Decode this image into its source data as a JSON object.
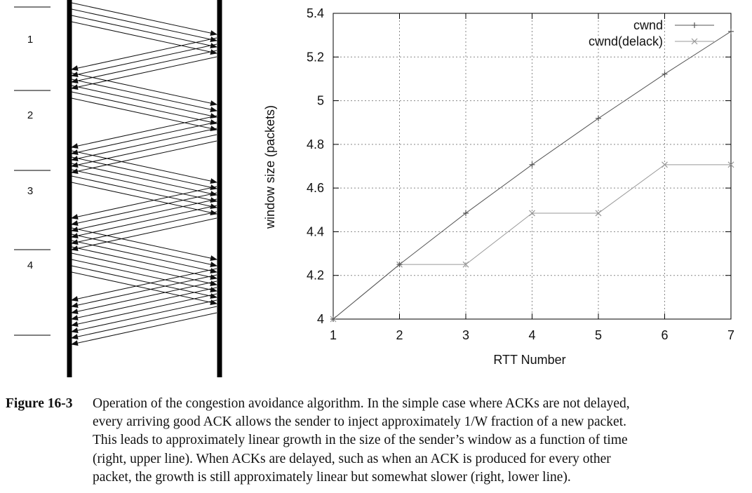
{
  "diagram": {
    "rtt_labels": [
      "1",
      "2",
      "3",
      "4"
    ]
  },
  "chart_data": {
    "type": "line",
    "xlabel": "RTT Number",
    "ylabel": "window size (packets)",
    "xlim": [
      1,
      7
    ],
    "ylim": [
      4,
      5.4
    ],
    "xticks": [
      "1",
      "2",
      "3",
      "4",
      "5",
      "6",
      "7"
    ],
    "yticks": [
      "4",
      "4.2",
      "4.4",
      "4.6",
      "4.8",
      "5",
      "5.2",
      "5.4"
    ],
    "grid": true,
    "legend_position": "top-right",
    "series": [
      {
        "name": "cwnd",
        "marker": "+",
        "color": "#555555",
        "x": [
          1,
          2,
          3,
          4,
          5,
          6,
          7
        ],
        "y": [
          4.0,
          4.25,
          4.485,
          4.707,
          4.919,
          5.122,
          5.317
        ]
      },
      {
        "name": "cwnd(delack)",
        "marker": "x",
        "color": "#999999",
        "x": [
          1,
          2,
          3,
          4,
          5,
          6,
          7
        ],
        "y": [
          4.0,
          4.25,
          4.25,
          4.485,
          4.485,
          4.707,
          4.707
        ]
      }
    ]
  },
  "caption": {
    "label": "Figure 16-3",
    "lines": [
      "Operation of the congestion avoidance algorithm. In the simple case where ACKs are not delayed,",
      "every arriving good ACK allows the sender to inject approximately 1/W fraction of a new packet.",
      "This leads to approximately linear growth in the size of the sender’s window as a function of time",
      "(right, upper line). When ACKs are delayed, such as when an ACK is produced for every other",
      "packet, the growth is still approximately linear but somewhat slower (right, lower line)."
    ]
  }
}
